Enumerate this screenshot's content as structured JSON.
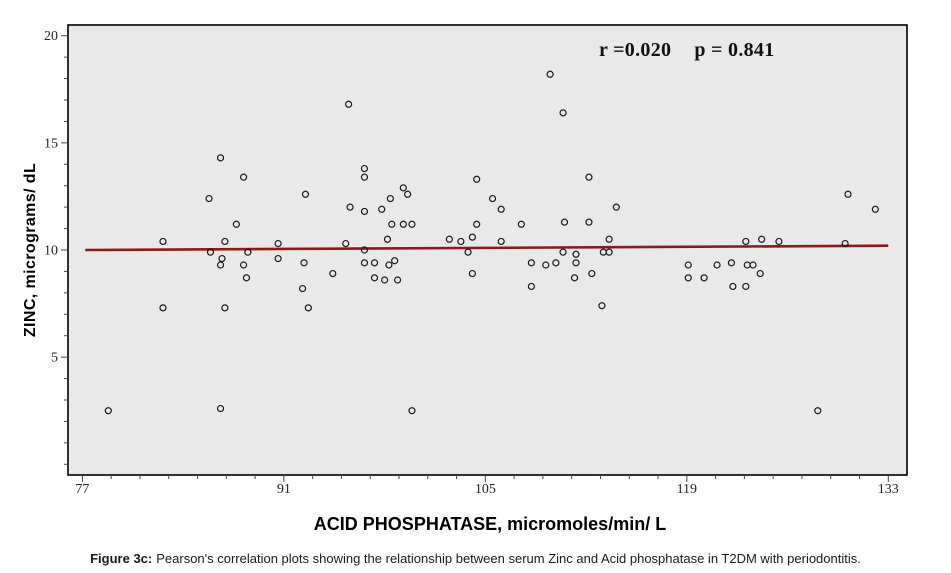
{
  "figure": {
    "annotation": {
      "r_label": "r =0.020",
      "p_label": "p = 0.841"
    },
    "y_axis_label": "ZINC, micrograms/ dL",
    "x_axis_label": "ACID PHOSPHATASE, micromoles/min/ L",
    "caption": {
      "prefix": "Figure 3c:",
      "text": "Pearson's correlation plots showing the relationship between serum Zinc and Acid phosphatase in T2DM with periodontitis."
    }
  },
  "chart_data": {
    "type": "scatter",
    "title": "",
    "xlabel": "ACID PHOSPHATASE, micromoles/min/ L",
    "ylabel": "ZINC, micrograms/ dL",
    "xlim": [
      76,
      134.3
    ],
    "ylim": [
      -0.5,
      20.5
    ],
    "x_major_ticks": [
      77,
      91,
      105,
      119,
      133
    ],
    "x_minor_step": 2,
    "y_major_ticks": [
      5,
      10,
      15,
      20
    ],
    "y_minor_step": 1,
    "grid": false,
    "legend": false,
    "stats": {
      "r": 0.02,
      "p": 0.841
    },
    "plot_bg": "#e9e9e9",
    "border_color": "#000000",
    "tick_color": "#444444",
    "tick_label_color": "#2b2219",
    "regression_line": {
      "x1": 77.2,
      "y1": 10.0,
      "x2": 133.0,
      "y2": 10.2,
      "color": "#8B1A1A"
    },
    "marker": {
      "shape": "open-circle",
      "radius": 3,
      "color": "#1a1a1a"
    },
    "points": [
      [
        86.6,
        14.3
      ],
      [
        88.2,
        13.4
      ],
      [
        85.8,
        12.4
      ],
      [
        92.5,
        12.6
      ],
      [
        87.7,
        11.2
      ],
      [
        82.6,
        10.4
      ],
      [
        86.9,
        10.4
      ],
      [
        90.6,
        10.3
      ],
      [
        109.5,
        18.2
      ],
      [
        110.4,
        16.4
      ],
      [
        95.5,
        16.8
      ],
      [
        96.6,
        13.8
      ],
      [
        96.6,
        13.4
      ],
      [
        99.3,
        12.9
      ],
      [
        99.6,
        12.6
      ],
      [
        98.4,
        12.4
      ],
      [
        95.6,
        12.0
      ],
      [
        96.6,
        11.8
      ],
      [
        97.8,
        11.9
      ],
      [
        104.4,
        13.3
      ],
      [
        105.5,
        12.4
      ],
      [
        106.1,
        11.9
      ],
      [
        112.2,
        13.4
      ],
      [
        98.5,
        11.2
      ],
      [
        99.3,
        11.2
      ],
      [
        99.9,
        11.2
      ],
      [
        104.4,
        11.2
      ],
      [
        107.5,
        11.2
      ],
      [
        110.5,
        11.3
      ],
      [
        112.2,
        11.3
      ],
      [
        114.1,
        12.0
      ],
      [
        98.2,
        10.5
      ],
      [
        102.5,
        10.5
      ],
      [
        103.3,
        10.4
      ],
      [
        104.1,
        10.6
      ],
      [
        106.1,
        10.4
      ],
      [
        113.6,
        10.5
      ],
      [
        95.3,
        10.3
      ],
      [
        130.2,
        12.6
      ],
      [
        132.1,
        11.9
      ],
      [
        123.1,
        10.4
      ],
      [
        124.2,
        10.5
      ],
      [
        125.4,
        10.4
      ],
      [
        130.0,
        10.3
      ],
      [
        85.9,
        9.9
      ],
      [
        86.7,
        9.6
      ],
      [
        86.6,
        9.3
      ],
      [
        88.5,
        9.9
      ],
      [
        88.2,
        9.3
      ],
      [
        88.4,
        8.7
      ],
      [
        90.6,
        9.6
      ],
      [
        92.4,
        9.4
      ],
      [
        94.4,
        8.9
      ],
      [
        92.3,
        8.2
      ],
      [
        82.6,
        7.3
      ],
      [
        86.9,
        7.3
      ],
      [
        92.7,
        7.3
      ],
      [
        78.8,
        2.5
      ],
      [
        86.6,
        2.6
      ],
      [
        96.6,
        10.0
      ],
      [
        103.8,
        9.9
      ],
      [
        110.4,
        9.9
      ],
      [
        111.3,
        9.8
      ],
      [
        111.3,
        9.4
      ],
      [
        113.2,
        9.9
      ],
      [
        113.6,
        9.9
      ],
      [
        96.6,
        9.4
      ],
      [
        97.3,
        9.4
      ],
      [
        98.3,
        9.3
      ],
      [
        98.7,
        9.5
      ],
      [
        108.2,
        9.4
      ],
      [
        109.2,
        9.3
      ],
      [
        109.9,
        9.4
      ],
      [
        104.1,
        8.9
      ],
      [
        97.3,
        8.7
      ],
      [
        98.0,
        8.6
      ],
      [
        98.9,
        8.6
      ],
      [
        111.2,
        8.7
      ],
      [
        112.4,
        8.9
      ],
      [
        108.2,
        8.3
      ],
      [
        113.1,
        7.4
      ],
      [
        99.9,
        2.5
      ],
      [
        119.1,
        9.3
      ],
      [
        121.1,
        9.3
      ],
      [
        122.1,
        9.4
      ],
      [
        123.2,
        9.3
      ],
      [
        123.6,
        9.3
      ],
      [
        124.1,
        8.9
      ],
      [
        119.1,
        8.7
      ],
      [
        120.2,
        8.7
      ],
      [
        122.2,
        8.3
      ],
      [
        123.1,
        8.3
      ],
      [
        128.1,
        2.5
      ]
    ]
  }
}
